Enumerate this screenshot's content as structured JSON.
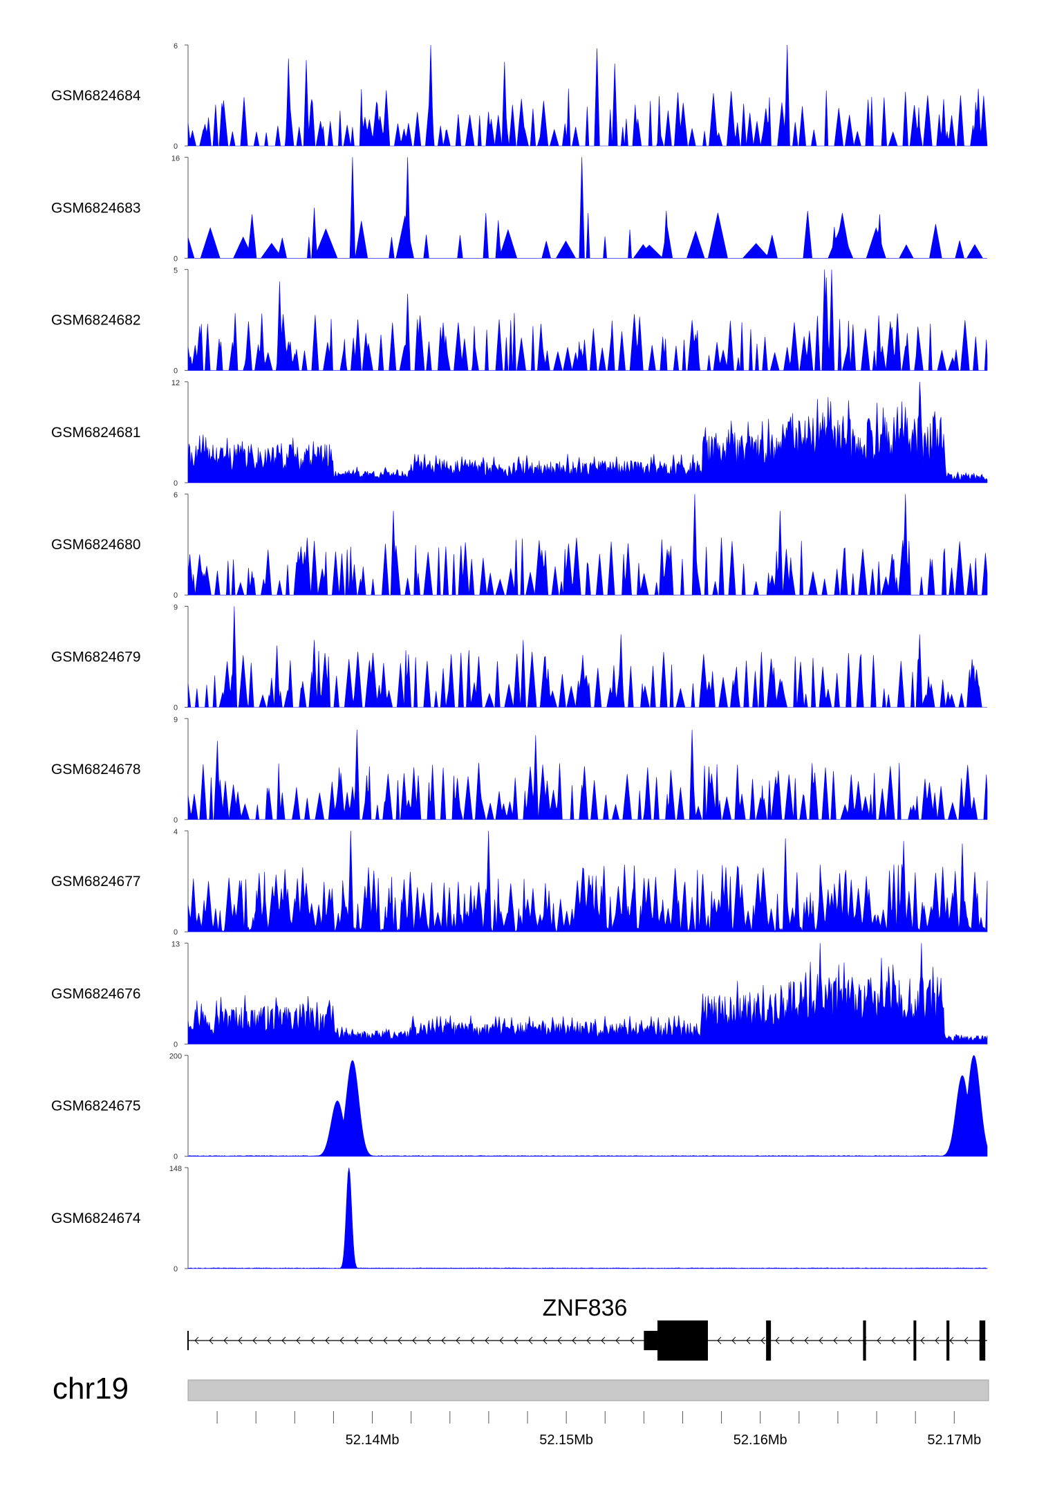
{
  "chart_data": {
    "type": "area",
    "chromosome": "chr19",
    "gene": {
      "name": "ZNF836",
      "strand": "-",
      "start": 52.1305,
      "end": 52.1717,
      "exons": [
        {
          "start": 52.154,
          "end": 52.1547,
          "kind": "utr"
        },
        {
          "start": 52.1547,
          "end": 52.1573,
          "kind": "cds"
        },
        {
          "start": 52.1603,
          "end": 52.16055,
          "kind": "cds"
        },
        {
          "start": 52.1653,
          "end": 52.16545,
          "kind": "cds"
        },
        {
          "start": 52.1679,
          "end": 52.16795,
          "kind": "cds"
        },
        {
          "start": 52.1696,
          "end": 52.16975,
          "kind": "cds"
        },
        {
          "start": 52.1713,
          "end": 52.1716,
          "kind": "cds"
        }
      ]
    },
    "xlim": [
      52.1305,
      52.1717
    ],
    "x_tick_labels": [
      {
        "value": 52.14,
        "label": "52.14Mb"
      },
      {
        "value": 52.15,
        "label": "52.15Mb"
      },
      {
        "value": 52.16,
        "label": "52.16Mb"
      },
      {
        "value": 52.17,
        "label": "52.17Mb"
      }
    ],
    "fill_color": "#0000ff",
    "tracks": [
      {
        "name": "GSM6824684",
        "ymax": 6,
        "ymin_label": "0",
        "ymax_label": "6",
        "pattern": "sparse",
        "seed": 11,
        "peaks": [
          [
            52.143,
            6.0
          ],
          [
            52.1516,
            5.8
          ],
          [
            52.1614,
            6.0
          ],
          [
            52.1357,
            5.2
          ],
          [
            52.1366,
            5.1
          ],
          [
            52.1468,
            5.0
          ],
          [
            52.1525,
            4.9
          ]
        ]
      },
      {
        "name": "GSM6824683",
        "ymax": 16,
        "ymin_label": "0",
        "ymax_label": "16",
        "pattern": "very_sparse",
        "seed": 23,
        "peaks": [
          [
            52.139,
            16
          ],
          [
            52.1418,
            16
          ],
          [
            52.1508,
            16
          ],
          [
            52.137,
            8
          ],
          [
            52.1465,
            6
          ]
        ]
      },
      {
        "name": "GSM6824682",
        "ymax": 5,
        "ymin_label": "0",
        "ymax_label": "5",
        "pattern": "sparse",
        "seed": 37,
        "peaks": [
          [
            52.1633,
            5.0
          ],
          [
            52.1637,
            5.0
          ],
          [
            52.1352,
            4.4
          ],
          [
            52.1418,
            3.8
          ],
          [
            52.1634,
            4.6
          ]
        ]
      },
      {
        "name": "GSM6824681",
        "ymax": 12,
        "ymin_label": "0",
        "ymax_label": "12",
        "pattern": "broad",
        "seed": 41,
        "peaks": [
          [
            52.1682,
            12.0
          ],
          [
            52.166,
            9.5
          ],
          [
            52.1675,
            9.0
          ],
          [
            52.169,
            8.5
          ]
        ]
      },
      {
        "name": "GSM6824680",
        "ymax": 6,
        "ymin_label": "0",
        "ymax_label": "6",
        "pattern": "sparse",
        "seed": 53,
        "peaks": [
          [
            52.1566,
            6.0
          ],
          [
            52.1675,
            6.0
          ],
          [
            52.161,
            5.0
          ],
          [
            52.1411,
            5.0
          ]
        ]
      },
      {
        "name": "GSM6824679",
        "ymax": 9,
        "ymin_label": "0",
        "ymax_label": "9",
        "pattern": "sparse",
        "seed": 67,
        "peaks": [
          [
            52.1329,
            9.0
          ],
          [
            52.137,
            6.0
          ],
          [
            52.1351,
            5.5
          ],
          [
            52.1478,
            6.0
          ],
          [
            52.1528,
            6.5
          ],
          [
            52.1682,
            6.5
          ]
        ]
      },
      {
        "name": "GSM6824678",
        "ymax": 9,
        "ymin_label": "0",
        "ymax_label": "9",
        "pattern": "sparse",
        "seed": 71,
        "peaks": [
          [
            52.1392,
            8.0
          ],
          [
            52.1565,
            8.0
          ],
          [
            52.1484,
            7.5
          ],
          [
            52.132,
            7.0
          ]
        ]
      },
      {
        "name": "GSM6824677",
        "ymax": 4,
        "ymin_label": "0",
        "ymax_label": "4",
        "pattern": "dense",
        "seed": 83,
        "peaks": [
          [
            52.1389,
            4.0
          ],
          [
            52.146,
            4.0
          ],
          [
            52.1613,
            3.7
          ],
          [
            52.1704,
            3.5
          ],
          [
            52.1674,
            3.6
          ]
        ]
      },
      {
        "name": "GSM6824676",
        "ymax": 13,
        "ymin_label": "0",
        "ymax_label": "13",
        "pattern": "broad",
        "seed": 97,
        "peaks": [
          [
            52.1631,
            13.0
          ],
          [
            52.1683,
            13.0
          ],
          [
            52.1643,
            10.5
          ],
          [
            52.1666,
            10.0
          ]
        ]
      },
      {
        "name": "GSM6824675",
        "ymax": 200,
        "ymin_label": "0",
        "ymax_label": "200",
        "pattern": "peak",
        "seed": 101,
        "peaks": [
          [
            52.139,
            190
          ],
          [
            52.1382,
            110
          ],
          [
            52.171,
            200
          ],
          [
            52.1704,
            160
          ]
        ]
      },
      {
        "name": "GSM6824674",
        "ymax": 148,
        "ymin_label": "0",
        "ymax_label": "148",
        "pattern": "peak",
        "seed": 113,
        "peaks": [
          [
            52.1388,
            148
          ]
        ]
      }
    ]
  }
}
